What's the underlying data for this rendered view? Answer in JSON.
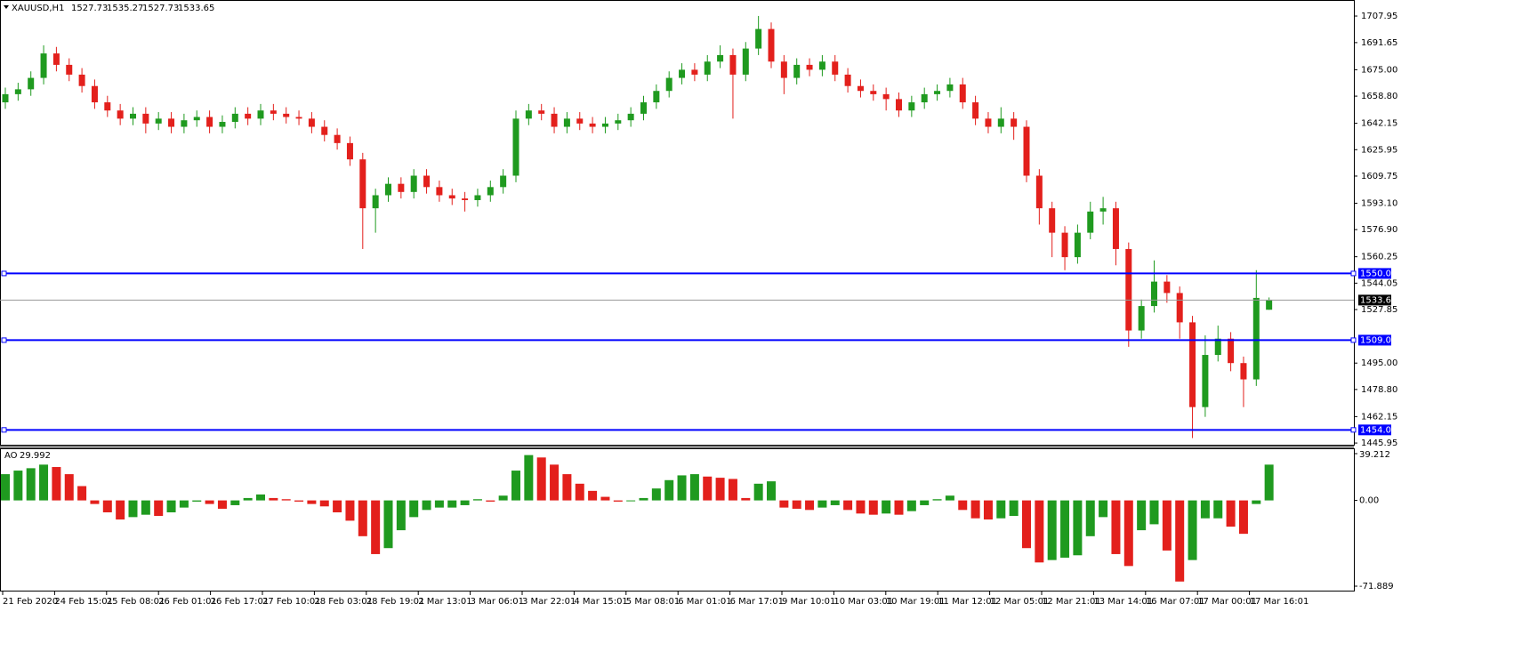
{
  "chart_data": {
    "type": "candlestick",
    "title": "XAUUSD,H1",
    "up_color": "#1f9a1f",
    "down_color": "#e3201c",
    "ylim": [
      1444.9,
      1716.7
    ],
    "yticks": [
      1707.95,
      1691.65,
      {
        "value": 1675,
        "label": "1675.00"
      },
      {
        "value": 1658.8,
        "label": "1658.80"
      },
      1642.15,
      1625.95,
      1609.75,
      {
        "value": 1593.1,
        "label": "1593.10"
      },
      {
        "value": 1576.9,
        "label": "1576.90"
      },
      1560.25,
      1544.05,
      1527.85,
      {
        "value": 1495,
        "label": "1495.00"
      },
      {
        "value": 1478.8,
        "label": "1478.80"
      },
      1462.15,
      1445.95
    ],
    "levels": [
      {
        "value": 1550,
        "label": "1550.00"
      },
      {
        "value": 1509.07,
        "label": "1509.07"
      },
      {
        "value": 1454,
        "label": "1454.00"
      }
    ],
    "level_color": "#0000ff",
    "x_labels": [
      "21 Feb 2020",
      "24 Feb 15:01",
      "25 Feb 08:01",
      "26 Feb 01:01",
      "26 Feb 17:01",
      "27 Feb 10:01",
      "28 Feb 03:01",
      "28 Feb 19:01",
      "2 Mar 13:01",
      "3 Mar 06:01",
      "3 Mar 22:01",
      "4 Mar 15:01",
      "5 Mar 08:01",
      "6 Mar 01:01",
      "6 Mar 17:01",
      "9 Mar 10:01",
      "10 Mar 03:01",
      "10 Mar 19:01",
      "11 Mar 12:01",
      "12 Mar 05:01",
      "12 Mar 21:01",
      "13 Mar 14:01",
      "16 Mar 07:01",
      "17 Mar 00:01",
      "17 Mar 16:01"
    ],
    "open": [
      1655,
      1660,
      1663,
      1670,
      1685,
      1678,
      1672,
      1665,
      1655,
      1650,
      1645,
      1648,
      1642,
      1645,
      1640,
      1644,
      1646,
      1640,
      1643,
      1648,
      1645,
      1650,
      1648,
      1646,
      1645,
      1640,
      1635,
      1630,
      1620,
      1590,
      1598,
      1605,
      1600,
      1610,
      1603,
      1598,
      1596,
      1595,
      1598,
      1603,
      1610,
      1645,
      1650,
      1648,
      1640,
      1645,
      1642,
      1640,
      1642,
      1644,
      1648,
      1655,
      1662,
      1670,
      1675,
      1672,
      1680,
      1684,
      1672,
      1688,
      1700,
      1680,
      1670,
      1678,
      1675,
      1680,
      1672,
      1665,
      1662,
      1660,
      1657,
      1650,
      1655,
      1660,
      1662,
      1666,
      1655,
      1645,
      1640,
      1645,
      1640,
      1610,
      1590,
      1575,
      1560,
      1575,
      1588,
      1590,
      1565,
      1515,
      1530,
      1545,
      1538,
      1520,
      1468,
      1500,
      1510,
      1495,
      1485,
      1527.73
    ],
    "high": [
      1664,
      1667,
      1674,
      1690,
      1689,
      1682,
      1676,
      1669,
      1659,
      1654,
      1652,
      1652,
      1649,
      1649,
      1648,
      1650,
      1650,
      1647,
      1652,
      1652,
      1654,
      1654,
      1652,
      1650,
      1649,
      1644,
      1639,
      1634,
      1624,
      1602,
      1609,
      1609,
      1614,
      1614,
      1607,
      1602,
      1600,
      1602,
      1607,
      1614,
      1650,
      1654,
      1654,
      1652,
      1649,
      1649,
      1646,
      1646,
      1648,
      1652,
      1659,
      1666,
      1674,
      1679,
      1679,
      1684,
      1690,
      1688,
      1692,
      1708,
      1704,
      1684,
      1682,
      1682,
      1684,
      1684,
      1676,
      1669,
      1666,
      1664,
      1661,
      1659,
      1664,
      1666,
      1670,
      1670,
      1659,
      1649,
      1652,
      1649,
      1644,
      1614,
      1594,
      1579,
      1580,
      1594,
      1597,
      1594,
      1569,
      1534,
      1558,
      1549,
      1542,
      1524,
      1512,
      1518,
      1514,
      1499,
      1552,
      1535.27
    ],
    "low": [
      1651,
      1656,
      1659,
      1666,
      1674,
      1668,
      1661,
      1651,
      1646,
      1641,
      1641,
      1636,
      1638,
      1636,
      1636,
      1640,
      1636,
      1636,
      1639,
      1641,
      1641,
      1644,
      1642,
      1641,
      1636,
      1631,
      1626,
      1616,
      1565,
      1575,
      1594,
      1596,
      1596,
      1599,
      1594,
      1592,
      1588,
      1591,
      1594,
      1599,
      1606,
      1641,
      1644,
      1636,
      1636,
      1638,
      1636,
      1636,
      1638,
      1640,
      1644,
      1651,
      1658,
      1666,
      1668,
      1668,
      1676,
      1645,
      1668,
      1684,
      1676,
      1660,
      1666,
      1671,
      1671,
      1668,
      1661,
      1658,
      1656,
      1650,
      1646,
      1646,
      1651,
      1656,
      1658,
      1651,
      1641,
      1636,
      1636,
      1632,
      1606,
      1580,
      1560,
      1552,
      1556,
      1571,
      1580,
      1555,
      1505,
      1510,
      1526,
      1532,
      1510,
      1449,
      1462,
      1496,
      1490,
      1468,
      1481,
      1527.73
    ],
    "close": [
      1660,
      1663,
      1670,
      1685,
      1678,
      1672,
      1665,
      1655,
      1650,
      1645,
      1648,
      1642,
      1645,
      1640,
      1644,
      1646,
      1640,
      1643,
      1648,
      1645,
      1650,
      1648,
      1646,
      1645,
      1640,
      1635,
      1630,
      1620,
      1590,
      1598,
      1605,
      1600,
      1610,
      1603,
      1598,
      1596,
      1595,
      1598,
      1603,
      1610,
      1645,
      1650,
      1648,
      1640,
      1645,
      1642,
      1640,
      1642,
      1644,
      1648,
      1655,
      1662,
      1670,
      1675,
      1672,
      1680,
      1684,
      1672,
      1688,
      1700,
      1680,
      1670,
      1678,
      1675,
      1680,
      1672,
      1665,
      1662,
      1660,
      1657,
      1650,
      1655,
      1660,
      1662,
      1666,
      1655,
      1645,
      1640,
      1645,
      1640,
      1610,
      1590,
      1575,
      1560,
      1575,
      1588,
      1590,
      1565,
      1515,
      1530,
      1545,
      1538,
      1520,
      1468,
      1500,
      1510,
      1495,
      1485,
      1535,
      1533.65
    ],
    "ao": {
      "name": "AO",
      "up_color": "#1f9a1f",
      "down_color": "#e3201c",
      "ylim": [
        -74.13,
        42.94
      ],
      "yticks": [
        39.212,
        {
          "value": 0,
          "label": "0.00"
        },
        -71.889
      ],
      "values": [
        22,
        25,
        27,
        30,
        28,
        22,
        12,
        -3,
        -10,
        -16,
        -14,
        -12,
        -13,
        -10,
        -6,
        -1,
        -3,
        -7,
        -4,
        2,
        5,
        2,
        1,
        -1,
        -3,
        -5,
        -10,
        -17,
        -30,
        -45,
        -40,
        -25,
        -14,
        -8,
        -6,
        -6,
        -4,
        1,
        -1,
        4,
        25,
        38,
        36,
        30,
        22,
        14,
        8,
        3,
        -1,
        0,
        2,
        10,
        17,
        21,
        22,
        20,
        19,
        18,
        2,
        14,
        16,
        -6,
        -7,
        -8,
        -6,
        -4,
        -8,
        -11,
        -12,
        -11,
        -12,
        -9,
        -4,
        1,
        4,
        -8,
        -15,
        -16,
        -15,
        -13,
        -40,
        -52,
        -50,
        -48,
        -46,
        -30,
        -14,
        -45,
        -55,
        -25,
        -20,
        -42,
        -68,
        -50,
        -15,
        -15,
        -22,
        -28,
        -3,
        29.992
      ]
    }
  }
}
